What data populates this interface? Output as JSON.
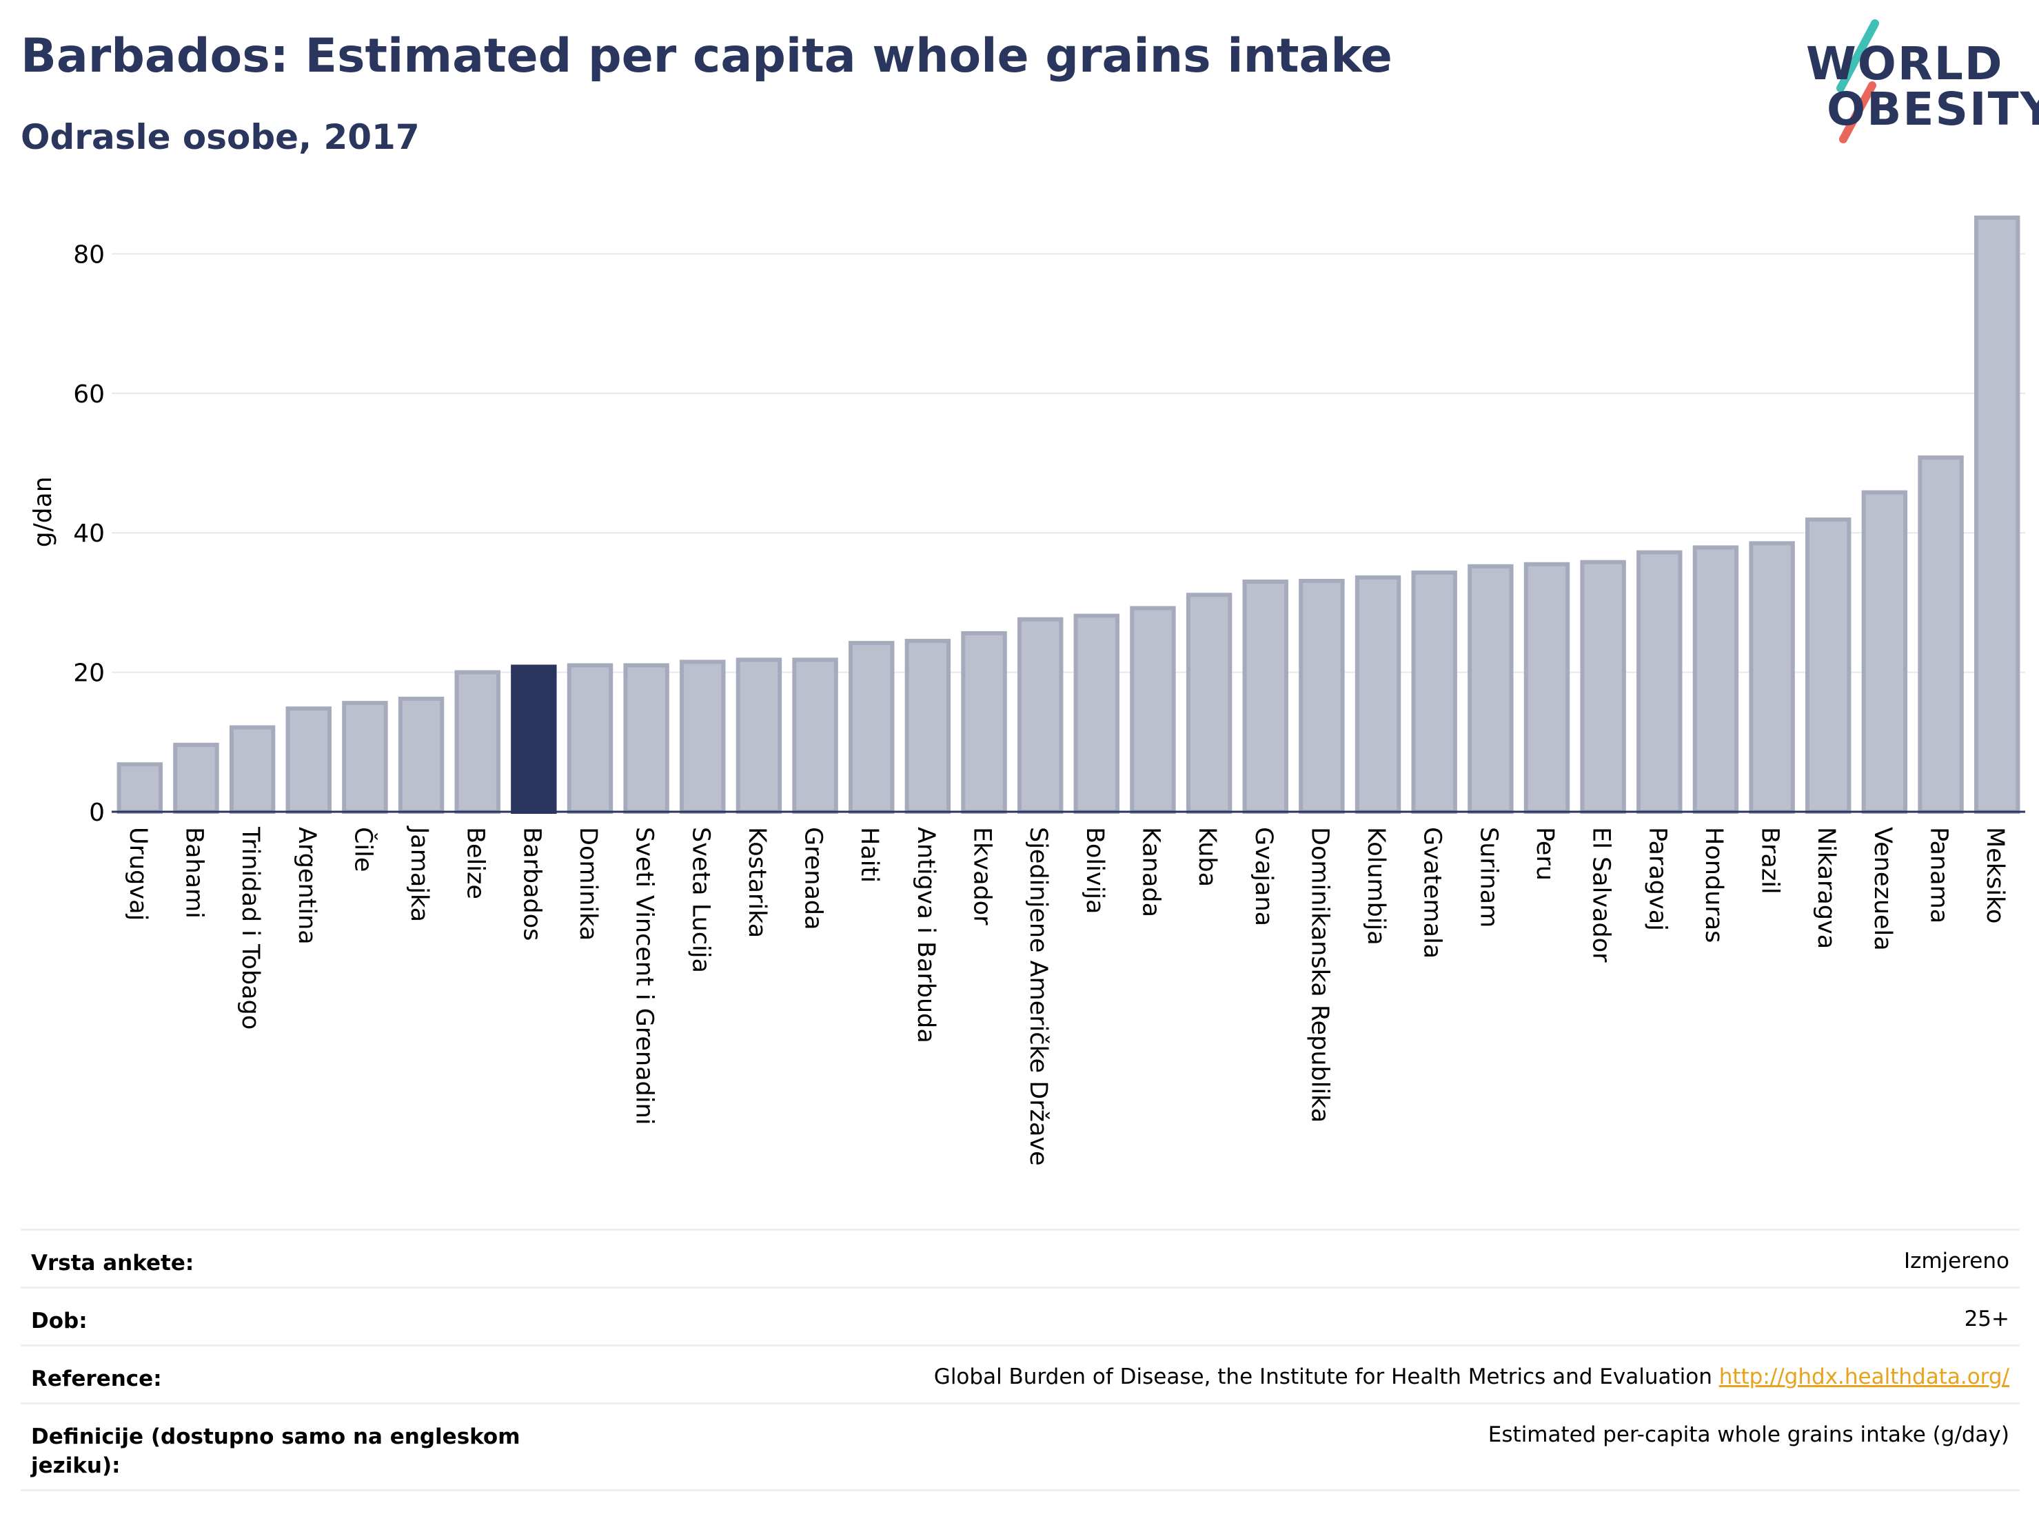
{
  "header": {
    "title": "Barbados: Estimated per capita whole grains intake",
    "subtitle": "Odrasle osobe, 2017"
  },
  "logo": {
    "line1": "WORLD",
    "line2": "OBESITY",
    "accent_colors": [
      "#3fbfb5",
      "#e8675a"
    ]
  },
  "colors": {
    "bar_default": "#bcc0ce",
    "bar_default_stroke": "#a5aabd",
    "bar_highlight": "#2b365e",
    "text_primary": "#2b365e",
    "link": "#e8a21b"
  },
  "chart_data": {
    "type": "bar",
    "title": "Barbados: Estimated per capita whole grains intake",
    "subtitle": "Odrasle osobe, 2017",
    "ylabel": "g/dan",
    "xlabel": "",
    "ylim": [
      0,
      88
    ],
    "yticks": [
      0,
      20,
      40,
      60,
      80
    ],
    "grid": true,
    "highlight": "Barbados",
    "categories": [
      "Urugvaj",
      "Bahami",
      "Trinidad i Tobago",
      "Argentina",
      "Čile",
      "Jamajka",
      "Belize",
      "Barbados",
      "Dominika",
      "Sveti Vincent i Grenadini",
      "Sveta Lucija",
      "Kostarika",
      "Grenada",
      "Haiti",
      "Antigva i Barbuda",
      "Ekvador",
      "Sjedinjene Američke Države",
      "Bolivija",
      "Kanada",
      "Kuba",
      "Gvajana",
      "Dominikanska Republika",
      "Kolumbija",
      "Gvatemala",
      "Surinam",
      "Peru",
      "El Salvador",
      "Paragvaj",
      "Honduras",
      "Brazil",
      "Nikaragva",
      "Venezuela",
      "Panama",
      "Meksiko"
    ],
    "values": [
      6.8,
      9.6,
      12.1,
      14.8,
      15.6,
      16.2,
      20.0,
      20.8,
      21.0,
      21.0,
      21.5,
      21.8,
      21.8,
      24.2,
      24.5,
      25.6,
      27.6,
      28.1,
      29.2,
      31.1,
      33.0,
      33.1,
      33.6,
      34.3,
      35.2,
      35.5,
      35.8,
      37.2,
      37.9,
      38.5,
      41.9,
      45.8,
      50.8,
      85.2
    ]
  },
  "footer": {
    "rows": [
      {
        "label": "Vrsta ankete:",
        "value": "Izmjereno"
      },
      {
        "label": "Dob:",
        "value": "25+"
      },
      {
        "label": "Reference:",
        "value": "Global Burden of Disease, the Institute for Health Metrics and Evaluation",
        "link": "http://ghdx.healthdata.org/"
      },
      {
        "label": "Definicije (dostupno samo na engleskom jeziku):",
        "value": "Estimated per-capita whole grains intake (g/day)"
      }
    ]
  }
}
